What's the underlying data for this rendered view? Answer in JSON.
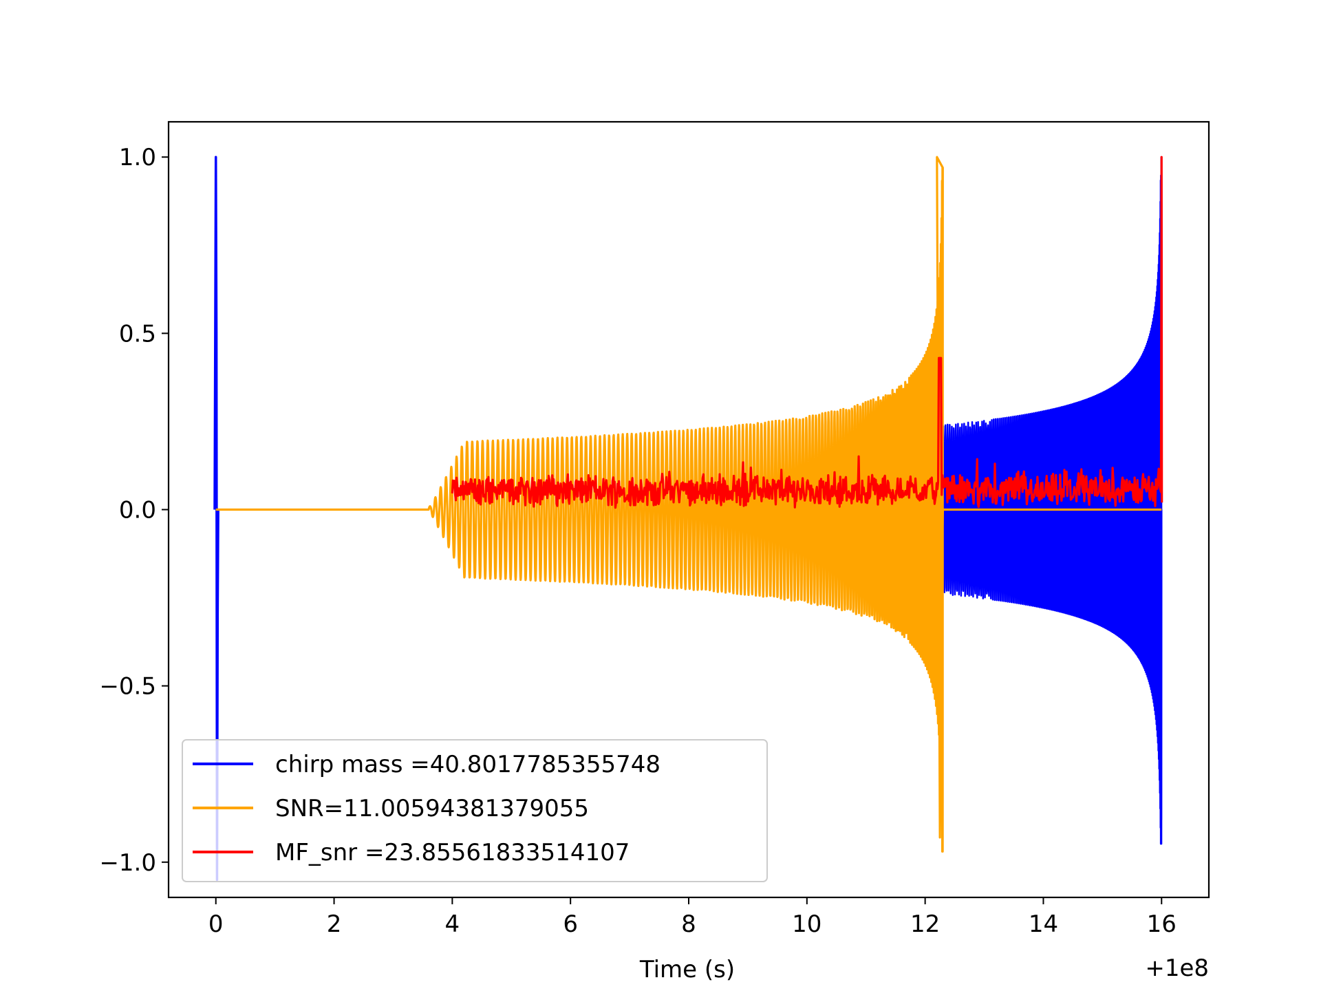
{
  "chart_data": {
    "type": "line",
    "title": "",
    "xlabel": "Time (s)",
    "ylabel": "",
    "x_offset_label": "+1e8",
    "xlim": [
      -0.8,
      16.8
    ],
    "ylim": [
      -1.1,
      1.1
    ],
    "x_ticks": [
      {
        "value": 0,
        "label": "0"
      },
      {
        "value": 2,
        "label": "2"
      },
      {
        "value": 4,
        "label": "4"
      },
      {
        "value": 6,
        "label": "6"
      },
      {
        "value": 8,
        "label": "8"
      },
      {
        "value": 10,
        "label": "10"
      },
      {
        "value": 12,
        "label": "12"
      },
      {
        "value": 14,
        "label": "14"
      },
      {
        "value": 16,
        "label": "16"
      }
    ],
    "y_ticks": [
      {
        "value": 1.0,
        "label": "1.0"
      },
      {
        "value": 0.5,
        "label": "0.5"
      },
      {
        "value": 0.0,
        "label": "0.0"
      },
      {
        "value": -0.5,
        "label": "−0.5"
      },
      {
        "value": -1.0,
        "label": "−1.0"
      }
    ],
    "grid": false,
    "legend_position": "lower-left",
    "series": [
      {
        "name": "chirp mass =40.8017785355748",
        "color": "#0000ff",
        "description": "spike at t=0 (+1.0 / -1.05), chirp from 12.3 to 16.0 with envelope 0.24 rising to 1.0 / -0.88",
        "key_points": [
          {
            "x": 0.0,
            "y": 1.0
          },
          {
            "x": 0.02,
            "y": -1.05
          },
          {
            "x": 12.35,
            "y": 0.24
          },
          {
            "x": 12.35,
            "y": -0.24
          },
          {
            "x": 15.0,
            "y": 0.3
          },
          {
            "x": 15.8,
            "y": 0.6
          },
          {
            "x": 16.0,
            "y": -0.88
          }
        ]
      },
      {
        "name": "SNR=11.00594381379055",
        "color": "#ffa500",
        "description": "flat at 0 until 3.6, chirp from 3.6 to 12.3 with envelope ~0.19 rising to 1.0 / -0.93",
        "key_points": [
          {
            "x": 0.0,
            "y": 0.0
          },
          {
            "x": 3.6,
            "y": 0.0
          },
          {
            "x": 4.2,
            "y": 0.19
          },
          {
            "x": 8.0,
            "y": 0.21
          },
          {
            "x": 11.0,
            "y": 0.33
          },
          {
            "x": 12.2,
            "y": 1.0
          },
          {
            "x": 12.3,
            "y": -0.93
          }
        ]
      },
      {
        "name": "MF_snr =23.85561833514107",
        "color": "#ff0000",
        "description": "noisy positive values ~0.0–0.15 between 4.0 and 16.0, spikes at 12.25 (0.43) and 16.0 (1.0)",
        "key_points": [
          {
            "x": 4.0,
            "y": 0.1
          },
          {
            "x": 8.0,
            "y": 0.08
          },
          {
            "x": 12.25,
            "y": 0.43
          },
          {
            "x": 14.0,
            "y": 0.08
          },
          {
            "x": 16.0,
            "y": 1.0
          }
        ]
      }
    ]
  }
}
